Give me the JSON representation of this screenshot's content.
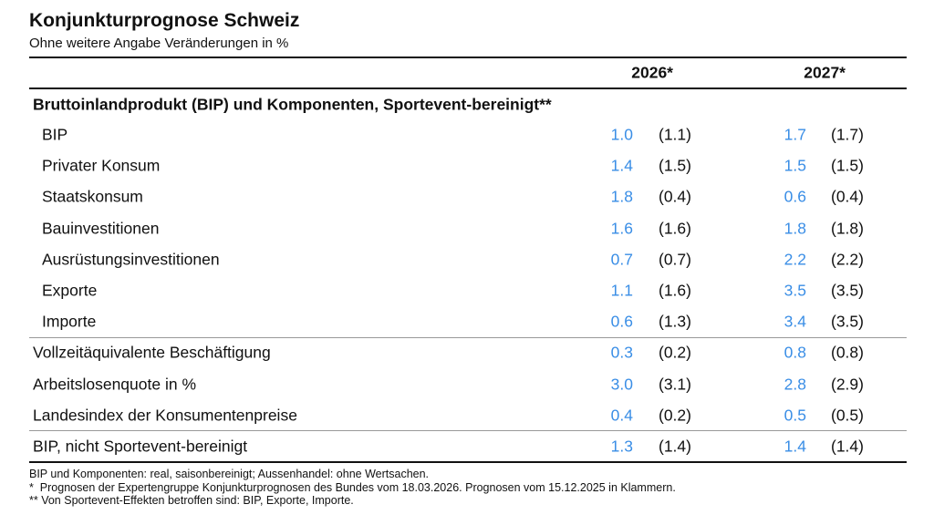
{
  "header": {
    "title": "Konjunkturprognose Schweiz",
    "subtitle": "Ohne weitere Angabe Veränderungen in %"
  },
  "table": {
    "columns": [
      "2026*",
      "2027*"
    ],
    "section": "Bruttoinlandprodukt (BIP) und Komponenten, Sportevent-bereinigt**",
    "groups": [
      [
        {
          "label": "BIP",
          "cells": [
            "1.0",
            "(1.1)",
            "1.7",
            "(1.7)"
          ]
        },
        {
          "label": "Privater Konsum",
          "cells": [
            "1.4",
            "(1.5)",
            "1.5",
            "(1.5)"
          ]
        },
        {
          "label": "Staatskonsum",
          "cells": [
            "1.8",
            "(0.4)",
            "0.6",
            "(0.4)"
          ]
        },
        {
          "label": "Bauinvestitionen",
          "cells": [
            "1.6",
            "(1.6)",
            "1.8",
            "(1.8)"
          ]
        },
        {
          "label": "Ausrüstungsinvestitionen",
          "cells": [
            "0.7",
            "(0.7)",
            "2.2",
            "(2.2)"
          ]
        },
        {
          "label": "Exporte",
          "cells": [
            "1.1",
            "(1.6)",
            "3.5",
            "(3.5)"
          ]
        },
        {
          "label": "Importe",
          "cells": [
            "0.6",
            "(1.3)",
            "3.4",
            "(3.5)"
          ]
        }
      ],
      [
        {
          "label": "Vollzeitäquivalente Beschäftigung",
          "cells": [
            "0.3",
            "(0.2)",
            "0.8",
            "(0.8)"
          ]
        },
        {
          "label": "Arbeitslosenquote in %",
          "cells": [
            "3.0",
            "(3.1)",
            "2.8",
            "(2.9)"
          ]
        },
        {
          "label": "Landesindex der Konsumentenpreise",
          "cells": [
            "0.4",
            "(0.2)",
            "0.5",
            "(0.5)"
          ]
        }
      ],
      [
        {
          "label": "BIP, nicht Sportevent-bereinigt",
          "cells": [
            "1.3",
            "(1.4)",
            "1.4",
            "(1.4)"
          ]
        }
      ]
    ]
  },
  "footnotes": [
    "BIP und Komponenten: real, saisonbereinigt; Aussenhandel: ohne Wertsachen.",
    "*  Prognosen der Expertengruppe Konjunkturprognosen des Bundes vom 18.03.2026. Prognosen vom 15.12.2025 in Klammern.",
    "** Von Sportevent-Effekten betroffen sind: BIP, Exporte, Importe."
  ]
}
